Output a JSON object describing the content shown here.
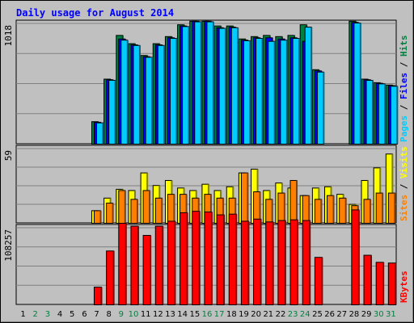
{
  "chart_data": {
    "type": "bar",
    "title": "Daily usage for August 2014",
    "categories": [
      "1",
      "2",
      "3",
      "4",
      "5",
      "6",
      "7",
      "8",
      "9",
      "10",
      "11",
      "12",
      "13",
      "14",
      "15",
      "16",
      "17",
      "18",
      "19",
      "20",
      "21",
      "22",
      "23",
      "24",
      "25",
      "26",
      "27",
      "28",
      "29",
      "30",
      "31"
    ],
    "weekend_days": [
      "2",
      "3",
      "9",
      "10",
      "16",
      "17",
      "23",
      "24",
      "30",
      "31"
    ],
    "panels": [
      {
        "id": "top",
        "ymax": 1018,
        "ymax_label": "1018",
        "grid": true,
        "axis_label_segments": [
          {
            "text": "Pages",
            "color": "#00ccff"
          },
          {
            "text": " / ",
            "color": "#000000"
          },
          {
            "text": "Files",
            "color": "#0000ff"
          },
          {
            "text": " / ",
            "color": "#000000"
          },
          {
            "text": "Hits",
            "color": "#008040"
          }
        ],
        "series": [
          {
            "name": "Hits",
            "color": "#008040",
            "values": [
              0,
              0,
              0,
              0,
              0,
              0,
              190,
              550,
              920,
              850,
              750,
              850,
              910,
              1010,
              1040,
              1040,
              1000,
              1000,
              890,
              910,
              920,
              910,
              920,
              1010,
              630,
              0,
              0,
              1040,
              550,
              520,
              500
            ]
          },
          {
            "name": "Files",
            "color": "#0000ff",
            "values": [
              0,
              0,
              0,
              0,
              0,
              0,
              185,
              545,
              890,
              840,
              740,
              840,
              900,
              1000,
              1040,
              1040,
              985,
              990,
              880,
              900,
              900,
              890,
              900,
              870,
              620,
              0,
              0,
              1030,
              545,
              515,
              495
            ]
          },
          {
            "name": "Pages",
            "color": "#00ccff",
            "values": [
              0,
              0,
              0,
              0,
              0,
              0,
              180,
              540,
              880,
              835,
              735,
              835,
              895,
              995,
              1035,
              1035,
              980,
              985,
              875,
              895,
              870,
              880,
              895,
              990,
              610,
              0,
              0,
              1025,
              540,
              510,
              490
            ]
          }
        ]
      },
      {
        "id": "middle",
        "ymax": 59,
        "ymax_label": "59",
        "grid": true,
        "axis_label_segments": [
          {
            "text": "Sites",
            "color": "#ff8000"
          },
          {
            "text": " / ",
            "color": "#000000"
          },
          {
            "text": "Visits",
            "color": "#ffff00"
          }
        ],
        "series": [
          {
            "name": "Visits",
            "color": "#ffff00",
            "values": [
              0,
              0,
              0,
              0,
              0,
              0,
              10,
              20,
              27,
              26,
              40,
              30,
              34,
              28,
              26,
              31,
              26,
              29,
              40,
              43,
              26,
              32,
              28,
              22,
              28,
              29,
              23,
              15,
              34,
              44,
              55
            ]
          },
          {
            "name": "Sites",
            "color": "#ff8000",
            "values": [
              0,
              0,
              0,
              0,
              0,
              0,
              10,
              16,
              26,
              19,
              26,
              20,
              23,
              23,
              20,
              23,
              20,
              20,
              40,
              25,
              19,
              24,
              34,
              22,
              19,
              22,
              20,
              14,
              19,
              24,
              24
            ]
          }
        ]
      },
      {
        "id": "bottom",
        "ymax": 108257,
        "ymax_label": "108257",
        "grid": true,
        "axis_label_segments": [
          {
            "text": "KBytes",
            "color": "#ff0000"
          }
        ],
        "series": [
          {
            "name": "KBytes",
            "color": "#ff0000",
            "values": [
              0,
              0,
              0,
              0,
              0,
              0,
              25000,
              76000,
              115000,
              111000,
              98000,
              111000,
              118000,
              130000,
              132000,
              131000,
              127000,
              128000,
              118000,
              121000,
              117000,
              119000,
              120000,
              119000,
              67000,
              0,
              0,
              134000,
              70000,
              60000,
              59000
            ]
          }
        ]
      }
    ]
  }
}
